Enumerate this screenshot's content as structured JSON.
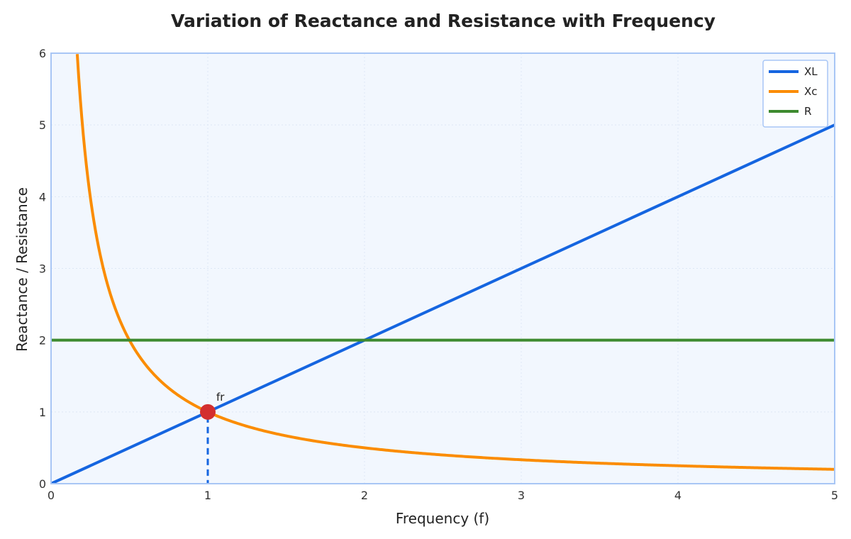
{
  "chart_data": {
    "type": "line",
    "title": "Variation of Reactance and Resistance with Frequency",
    "xlabel": "Frequency (f)",
    "ylabel": "Reactance / Resistance",
    "xlim": [
      0,
      5
    ],
    "ylim": [
      0,
      6
    ],
    "x_ticks": [
      0,
      1,
      2,
      3,
      4,
      5
    ],
    "y_ticks": [
      0,
      1,
      2,
      3,
      4,
      5,
      6
    ],
    "grid": true,
    "legend_position": "top-right",
    "series": [
      {
        "name": "XL",
        "color": "#1565e0",
        "formula": "y = x",
        "x": [
          0,
          5
        ],
        "y": [
          0,
          5
        ]
      },
      {
        "name": "Xc",
        "color": "#fb8c00",
        "formula": "y = 1 / x",
        "x": [
          0.167,
          0.2,
          0.25,
          0.333,
          0.5,
          0.75,
          1,
          1.5,
          2,
          2.5,
          3,
          3.5,
          4,
          4.5,
          5
        ],
        "y": [
          6,
          5,
          4,
          3,
          2,
          1.333,
          1,
          0.667,
          0.5,
          0.4,
          0.333,
          0.286,
          0.25,
          0.222,
          0.2
        ]
      },
      {
        "name": "R",
        "color": "#3d8a2f",
        "formula": "y = 2",
        "x": [
          0,
          5
        ],
        "y": [
          2,
          2
        ]
      }
    ],
    "annotations": [
      {
        "label": "fr",
        "x": 1,
        "y": 1,
        "marker_color": "#d32f2f",
        "drop_line_color": "#1565e0"
      }
    ]
  },
  "colors": {
    "plot_background": "#f2f7fe",
    "plot_border": "#a8c6f5",
    "grid": "#dde7f5"
  }
}
